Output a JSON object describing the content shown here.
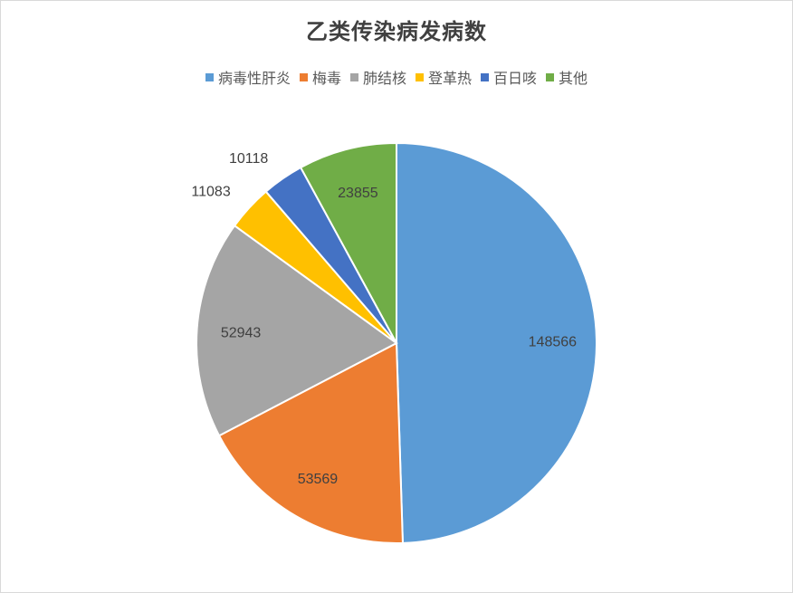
{
  "chart_data": {
    "type": "pie",
    "title": "乙类传染病发病数",
    "legend_position": "top",
    "categories": [
      "病毒性肝炎",
      "梅毒",
      "肺结核",
      "登革热",
      "百日咳",
      "其他"
    ],
    "values": [
      148566,
      53569,
      52943,
      11083,
      10118,
      23855
    ],
    "colors": [
      "#5B9BD5",
      "#ED7D31",
      "#A5A5A5",
      "#FFC000",
      "#4472C4",
      "#70AD47"
    ]
  }
}
